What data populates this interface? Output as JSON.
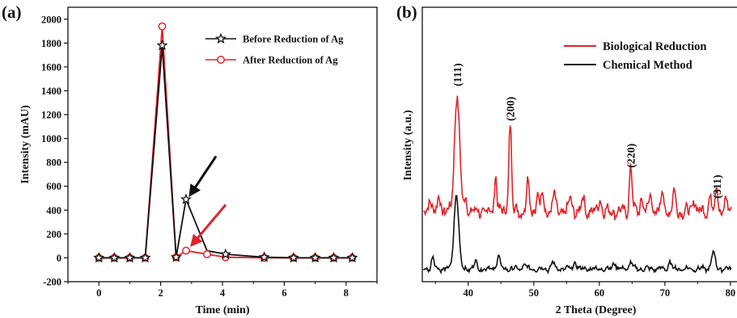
{
  "chart_data": [
    {
      "type": "line",
      "panel_label": "(a)",
      "xlabel": "Time (min)",
      "ylabel": "Intensity  (mAU)",
      "xlim": [
        -1,
        9
      ],
      "ylim": [
        -200,
        2100
      ],
      "x_ticks": [
        0,
        2,
        4,
        6,
        8
      ],
      "y_ticks": [
        -200,
        0,
        200,
        400,
        600,
        800,
        1000,
        1200,
        1400,
        1600,
        1800,
        2000
      ],
      "legend_position": "top-right",
      "series": [
        {
          "name": "Before Reduction of Ag",
          "color": "#111111",
          "marker": "star",
          "x": [
            0,
            0.5,
            1.0,
            1.5,
            2.05,
            2.5,
            2.82,
            3.5,
            4.1,
            5.35,
            6.3,
            7.0,
            7.6,
            8.2
          ],
          "y": [
            0,
            0,
            0,
            0,
            1780,
            5,
            490,
            60,
            30,
            5,
            0,
            0,
            0,
            0
          ],
          "marked": [
            true,
            true,
            true,
            true,
            true,
            true,
            true,
            false,
            true,
            true,
            true,
            true,
            true,
            true
          ]
        },
        {
          "name": "After Reduction of Ag",
          "color": "#e0242b",
          "marker": "circle",
          "x": [
            0,
            0.5,
            1.0,
            1.5,
            2.05,
            2.5,
            2.82,
            3.5,
            4.1,
            5.35,
            6.3,
            7.0,
            7.6,
            8.2
          ],
          "y": [
            0,
            0,
            0,
            0,
            1940,
            5,
            60,
            30,
            5,
            0,
            0,
            0,
            0,
            0
          ],
          "marked": [
            true,
            true,
            true,
            true,
            true,
            true,
            true,
            true,
            true,
            true,
            true,
            true,
            true,
            true
          ]
        }
      ],
      "annotations": [
        {
          "type": "arrow",
          "color": "#111111",
          "target": [
            2.85,
            500
          ]
        },
        {
          "type": "arrow",
          "color": "#e0242b",
          "target": [
            2.9,
            80
          ]
        }
      ]
    },
    {
      "type": "line",
      "panel_label": "(b)",
      "xlabel": "2 Theta (Degree)",
      "ylabel": "Intensity (a.u.)",
      "xlim": [
        33,
        81
      ],
      "x_ticks": [
        40,
        50,
        60,
        70,
        80
      ],
      "legend_position": "top-right",
      "series": [
        {
          "name": "Biological Reduction",
          "color": "#e0242b",
          "offset": 0.42
        },
        {
          "name": "Chemical Method",
          "color": "#111111",
          "offset": 0.0
        }
      ],
      "peaks": [
        {
          "label": "(111)",
          "x": 38.3
        },
        {
          "label": "(200)",
          "x": 46.4
        },
        {
          "label": "(220)",
          "x": 64.8
        },
        {
          "label": "(311)",
          "x": 77.9
        }
      ]
    }
  ]
}
